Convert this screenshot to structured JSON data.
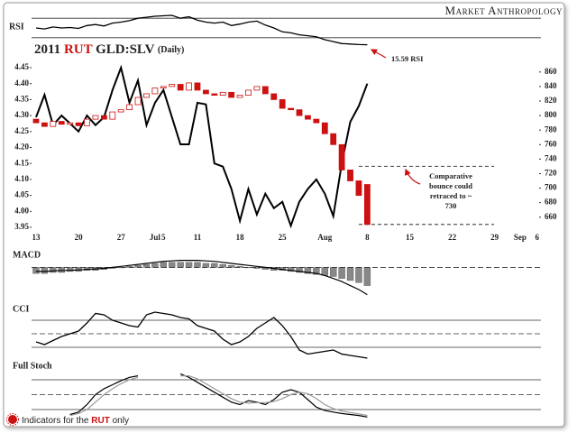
{
  "header": {
    "brand": "Market Anthropology"
  },
  "footer": {
    "parts": [
      "Indicators for the",
      "RUT",
      "only"
    ]
  },
  "chart_data": [
    {
      "type": "candlestick",
      "title_parts": [
        "2011",
        "RUT",
        "GLD:SLV",
        "(Daily)"
      ],
      "categories": [
        "13",
        null,
        null,
        null,
        null,
        "20",
        null,
        null,
        null,
        null,
        "27",
        null,
        null,
        null,
        "Jul",
        "5",
        null,
        null,
        null,
        "11",
        null,
        null,
        null,
        null,
        "18",
        null,
        null,
        null,
        null,
        "25",
        null,
        null,
        null,
        null,
        "Aug",
        null,
        null,
        null,
        null,
        "8",
        null,
        null,
        null,
        null,
        "15",
        null,
        null,
        null,
        null,
        "22",
        null,
        null,
        null,
        null,
        "29",
        null,
        null,
        "Sep",
        null,
        "6"
      ],
      "month_label_color": "#cc1111",
      "series": [
        {
          "type": "line",
          "color": "#000000",
          "values": [
            4.295,
            4.365,
            4.27,
            4.3,
            4.275,
            4.25,
            4.3,
            4.27,
            4.295,
            4.38,
            4.45,
            4.34,
            4.41,
            4.27,
            4.34,
            4.38,
            4.295,
            4.21,
            4.21,
            4.34,
            4.335,
            4.15,
            4.14,
            4.07,
            3.97,
            4.07,
            3.99,
            4.055,
            4.01,
            4.03,
            3.955,
            4.03,
            4.07,
            4.1,
            4.055,
            3.985,
            4.15,
            4.28,
            4.33,
            4.4,
            null,
            null,
            null,
            null,
            null,
            null,
            null,
            null,
            null,
            null,
            null,
            null,
            null,
            null,
            null,
            null,
            null,
            null,
            null,
            null
          ]
        },
        {
          "type": "candlestick",
          "axis": "y2",
          "up_color": "#ffffff",
          "down_color": "#cc1111",
          "edge_color": "#cc1111",
          "open": [
            795,
            790,
            785,
            792,
            788,
            790,
            786,
            795,
            800,
            795,
            805,
            808,
            815,
            825,
            830,
            838,
            840,
            843,
            835,
            845,
            835,
            830,
            828,
            832,
            825,
            828,
            835,
            840,
            830,
            822,
            810,
            808,
            800,
            795,
            790,
            775,
            760,
            725,
            710,
            705,
            null,
            null,
            null,
            null,
            null,
            null,
            null,
            null,
            null,
            null,
            null,
            null,
            null,
            null,
            null,
            null,
            null,
            null,
            null,
            null
          ],
          "close": [
            790,
            785,
            792,
            788,
            790,
            786,
            795,
            800,
            795,
            805,
            808,
            815,
            825,
            830,
            838,
            840,
            843,
            835,
            845,
            835,
            830,
            828,
            832,
            825,
            828,
            835,
            840,
            830,
            822,
            810,
            808,
            800,
            795,
            790,
            775,
            760,
            725,
            710,
            690,
            650,
            null,
            null,
            null,
            null,
            null,
            null,
            null,
            null,
            null,
            null,
            null,
            null,
            null,
            null,
            null,
            null,
            null,
            null,
            null,
            null
          ]
        }
      ],
      "ylim": [
        3.95,
        4.45
      ],
      "yticks": [
        3.95,
        {
          "value": 4.0,
          "label": "4.00"
        },
        4.05,
        {
          "value": 4.1,
          "label": "4.10"
        },
        4.15,
        {
          "value": 4.2,
          "label": "4.20"
        },
        4.25,
        {
          "value": 4.3,
          "label": "4.30"
        },
        4.35,
        {
          "value": 4.4,
          "label": "4.40"
        },
        4.45
      ],
      "y2lim": [
        646,
        866
      ],
      "y2ticks": [
        660,
        680,
        700,
        720,
        740,
        760,
        780,
        800,
        820,
        840,
        860
      ],
      "y2_label_color": "#cc1111",
      "levels": [
        730,
        650
      ],
      "annotation": [
        "Comparative",
        "bounce could",
        "retraced to ~",
        "730"
      ]
    },
    {
      "type": "line",
      "title": "RSI",
      "ylim": [
        0,
        100
      ],
      "levels": [
        30,
        70
      ],
      "color": "#000000",
      "values": [
        50,
        48,
        52,
        50,
        51,
        49,
        55,
        57,
        54,
        60,
        62,
        65,
        70,
        72,
        74,
        75,
        76,
        70,
        73,
        66,
        62,
        60,
        62,
        55,
        58,
        62,
        64,
        56,
        50,
        42,
        40,
        36,
        34,
        32,
        26,
        22,
        18,
        17,
        16,
        15.59
      ],
      "annotation": "15.59 RSI"
    },
    {
      "type": "bar",
      "title": "MACD",
      "ylim": [
        -30,
        12
      ],
      "levels": [
        0
      ],
      "bar_color": "#888888",
      "line_color": "#000000",
      "values": [
        -6,
        -6,
        -5,
        -5,
        -4,
        -4,
        -3,
        -3,
        -2,
        -1,
        0,
        1,
        2,
        3,
        4,
        5,
        5,
        5,
        5,
        5,
        4,
        4,
        3,
        2,
        1,
        0,
        -1,
        -2,
        -3,
        -3,
        -4,
        -5,
        -6,
        -7,
        -8,
        -9,
        -11,
        -13,
        -15,
        -18
      ],
      "line": [
        -4,
        -4,
        -3.5,
        -3,
        -3,
        -2.5,
        -2,
        -1.5,
        -1,
        0,
        1,
        2,
        3,
        4,
        5,
        6,
        6.5,
        7,
        7,
        7,
        6.5,
        6,
        5,
        4,
        3,
        2,
        1,
        0,
        -1,
        -2,
        -3,
        -4,
        -5,
        -6,
        -8,
        -11,
        -14,
        -18,
        -22,
        -27
      ]
    },
    {
      "type": "line",
      "title": "CCI",
      "ylim": [
        -200,
        200
      ],
      "levels": [
        -100,
        0,
        100
      ],
      "color": "#000000",
      "values": [
        -60,
        -80,
        -50,
        -20,
        0,
        20,
        80,
        150,
        140,
        100,
        80,
        60,
        50,
        140,
        160,
        150,
        140,
        120,
        110,
        60,
        40,
        20,
        -40,
        -80,
        -60,
        -20,
        40,
        80,
        120,
        60,
        -20,
        -120,
        -150,
        -140,
        -130,
        -120,
        -150,
        -160,
        -170,
        -180
      ]
    },
    {
      "type": "line",
      "title": "Full Stoch",
      "ylim": [
        0,
        100
      ],
      "levels": [
        20,
        50,
        80
      ],
      "series": [
        {
          "color": "#000000",
          "values": [
            null,
            null,
            null,
            null,
            10,
            15,
            30,
            50,
            62,
            70,
            78,
            85,
            88,
            null,
            null,
            null,
            null,
            92,
            85,
            75,
            65,
            55,
            45,
            35,
            30,
            38,
            35,
            30,
            40,
            55,
            60,
            55,
            40,
            25,
            18,
            15,
            12,
            10,
            8,
            5
          ]
        },
        {
          "color": "#999999",
          "values": [
            null,
            null,
            null,
            null,
            8,
            12,
            20,
            35,
            50,
            62,
            72,
            80,
            85,
            null,
            null,
            null,
            null,
            88,
            88,
            82,
            72,
            62,
            52,
            42,
            35,
            33,
            34,
            34,
            36,
            42,
            50,
            55,
            52,
            42,
            30,
            22,
            17,
            14,
            11,
            8
          ]
        }
      ]
    }
  ]
}
